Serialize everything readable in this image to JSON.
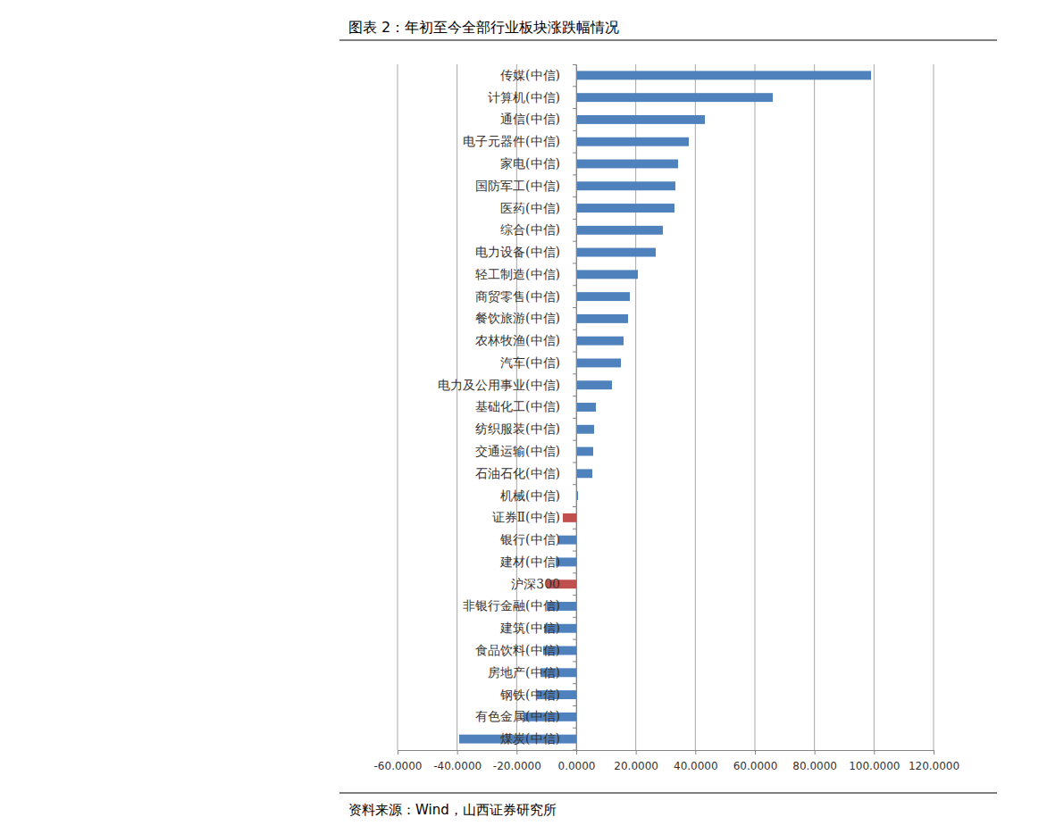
{
  "chart_data": {
    "type": "bar",
    "orientation": "horizontal",
    "title": "图表 2：年初至今全部行业板块涨跌幅情况",
    "annotations": [
      "资料来源：Wind，山西证券研究所"
    ],
    "categories": [
      "传媒(中信)",
      "计算机(中信)",
      "通信(中信)",
      "电子元器件(中信)",
      "家电(中信)",
      "国防军工(中信)",
      "医药(中信)",
      "综合(中信)",
      "电力设备(中信)",
      "轻工制造(中信)",
      "商贸零售(中信)",
      "餐饮旅游(中信)",
      "农林牧渔(中信)",
      "汽车(中信)",
      "电力及公用事业(中信)",
      "基础化工(中信)",
      "纺织服装(中信)",
      "交通运输(中信)",
      "石油石化(中信)",
      "机械(中信)",
      "证券Ⅱ(中信)",
      "银行(中信)",
      "建材(中信)",
      "沪深300",
      "非银行金融(中信)",
      "建筑(中信)",
      "食品饮料(中信)",
      "房地产(中信)",
      "钢铁(中信)",
      "有色金属(中信)",
      "煤炭(中信)"
    ],
    "values": [
      99.0,
      66.0,
      43.2,
      37.8,
      34.2,
      33.3,
      33.0,
      29.1,
      26.7,
      20.7,
      18.0,
      17.4,
      15.9,
      15.0,
      12.0,
      6.6,
      6.0,
      5.7,
      5.4,
      0.6,
      -4.5,
      -6.0,
      -6.9,
      -9.9,
      -9.9,
      -10.8,
      -11.1,
      -12.0,
      -13.2,
      -17.7,
      -39.3
    ],
    "colors": [
      "#4f81bd",
      "#4f81bd",
      "#4f81bd",
      "#4f81bd",
      "#4f81bd",
      "#4f81bd",
      "#4f81bd",
      "#4f81bd",
      "#4f81bd",
      "#4f81bd",
      "#4f81bd",
      "#4f81bd",
      "#4f81bd",
      "#4f81bd",
      "#4f81bd",
      "#4f81bd",
      "#4f81bd",
      "#4f81bd",
      "#4f81bd",
      "#4f81bd",
      "#c0504d",
      "#4f81bd",
      "#4f81bd",
      "#c0504d",
      "#4f81bd",
      "#4f81bd",
      "#4f81bd",
      "#4f81bd",
      "#4f81bd",
      "#4f81bd",
      "#4f81bd"
    ],
    "xlim": [
      -60,
      120
    ],
    "xticks": [
      {
        "value": -60,
        "label": "-60.0000"
      },
      {
        "value": -40,
        "label": "-40.0000"
      },
      {
        "value": -20,
        "label": "-20.0000"
      },
      {
        "value": 0,
        "label": "0.0000"
      },
      {
        "value": 20,
        "label": "20.0000"
      },
      {
        "value": 40,
        "label": "40.0000"
      },
      {
        "value": 60,
        "label": "60.0000"
      },
      {
        "value": 80,
        "label": "80.0000"
      },
      {
        "value": 100,
        "label": "100.0000"
      },
      {
        "value": 120,
        "label": "120.0000"
      }
    ],
    "grid": true
  }
}
